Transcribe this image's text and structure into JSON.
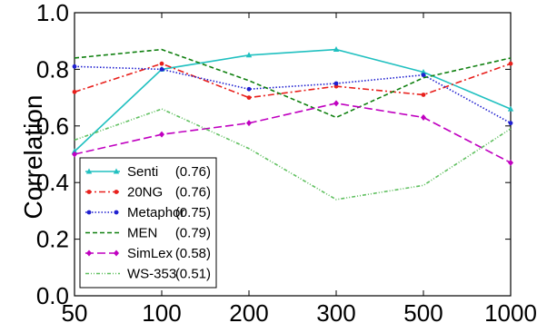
{
  "chart_data": {
    "type": "line",
    "title": "",
    "xlabel": "",
    "ylabel": "Correlation",
    "categories": [
      "50",
      "100",
      "200",
      "300",
      "500",
      "1000"
    ],
    "ylim": [
      0.0,
      1.0
    ],
    "yticks": [
      "0.0",
      "0.2",
      "0.4",
      "0.6",
      "0.8",
      "1.0"
    ],
    "grid": false,
    "legend_position": "bottom-left",
    "series": [
      {
        "name": "Senti",
        "score": "(0.76)",
        "color": "#20c0c0",
        "dash": "solid",
        "marker": "triangle",
        "values": [
          0.51,
          0.8,
          0.85,
          0.87,
          0.79,
          0.66
        ]
      },
      {
        "name": "20NG",
        "score": "(0.76)",
        "color": "#e8201c",
        "dash": "dashdot",
        "marker": "circle",
        "values": [
          0.72,
          0.82,
          0.7,
          0.74,
          0.71,
          0.82
        ]
      },
      {
        "name": "Metaphor",
        "score": "(0.75)",
        "color": "#2020d0",
        "dash": "dotted",
        "marker": "circle",
        "values": [
          0.81,
          0.8,
          0.73,
          0.75,
          0.78,
          0.61
        ]
      },
      {
        "name": "MEN",
        "score": "(0.79)",
        "color": "#108010",
        "dash": "dashed",
        "marker": "none",
        "values": [
          0.84,
          0.87,
          0.76,
          0.63,
          0.77,
          0.84
        ]
      },
      {
        "name": "SimLex",
        "score": "(0.58)",
        "color": "#c000c0",
        "dash": "longdash",
        "marker": "diamond",
        "values": [
          0.5,
          0.57,
          0.61,
          0.68,
          0.63,
          0.47
        ]
      },
      {
        "name": "WS-353",
        "score": "(0.51)",
        "color": "#60c060",
        "dash": "dashdotdot",
        "marker": "none",
        "values": [
          0.55,
          0.66,
          0.52,
          0.34,
          0.39,
          0.59
        ]
      }
    ]
  }
}
